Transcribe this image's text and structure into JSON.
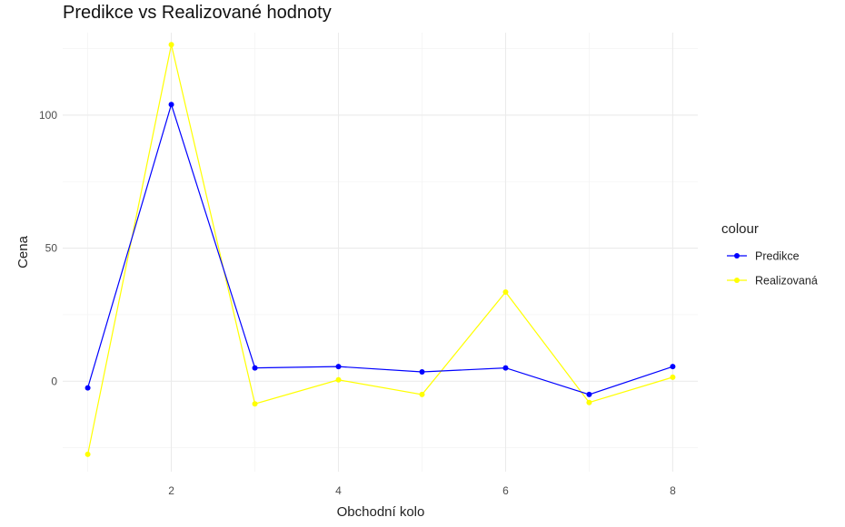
{
  "chart_data": {
    "type": "line",
    "title": "Predikce vs Realizované hodnoty",
    "xlabel": "Obchodní kolo",
    "ylabel": "Cena",
    "x": [
      1,
      2,
      3,
      4,
      5,
      6,
      7,
      8
    ],
    "xlim": [
      0.7,
      8.3
    ],
    "ylim": [
      -34,
      131
    ],
    "x_ticks": [
      2,
      4,
      6,
      8
    ],
    "x_tick_labels": [
      "2",
      "4",
      "6",
      "8"
    ],
    "y_ticks": [
      0,
      50,
      100
    ],
    "y_tick_labels": [
      "0",
      "50",
      "100"
    ],
    "grid": true,
    "legend": {
      "title": "colour",
      "position": "right"
    },
    "series": [
      {
        "name": "Predikce",
        "color": "#0000FF",
        "values": [
          -2.5,
          104,
          5,
          5.5,
          3.5,
          5,
          -5,
          5.5
        ]
      },
      {
        "name": "Realizovaná",
        "color": "#FFFF00",
        "values": [
          -27.5,
          126.5,
          -8.5,
          0.5,
          -5,
          33.5,
          -8,
          1.5
        ]
      }
    ]
  }
}
